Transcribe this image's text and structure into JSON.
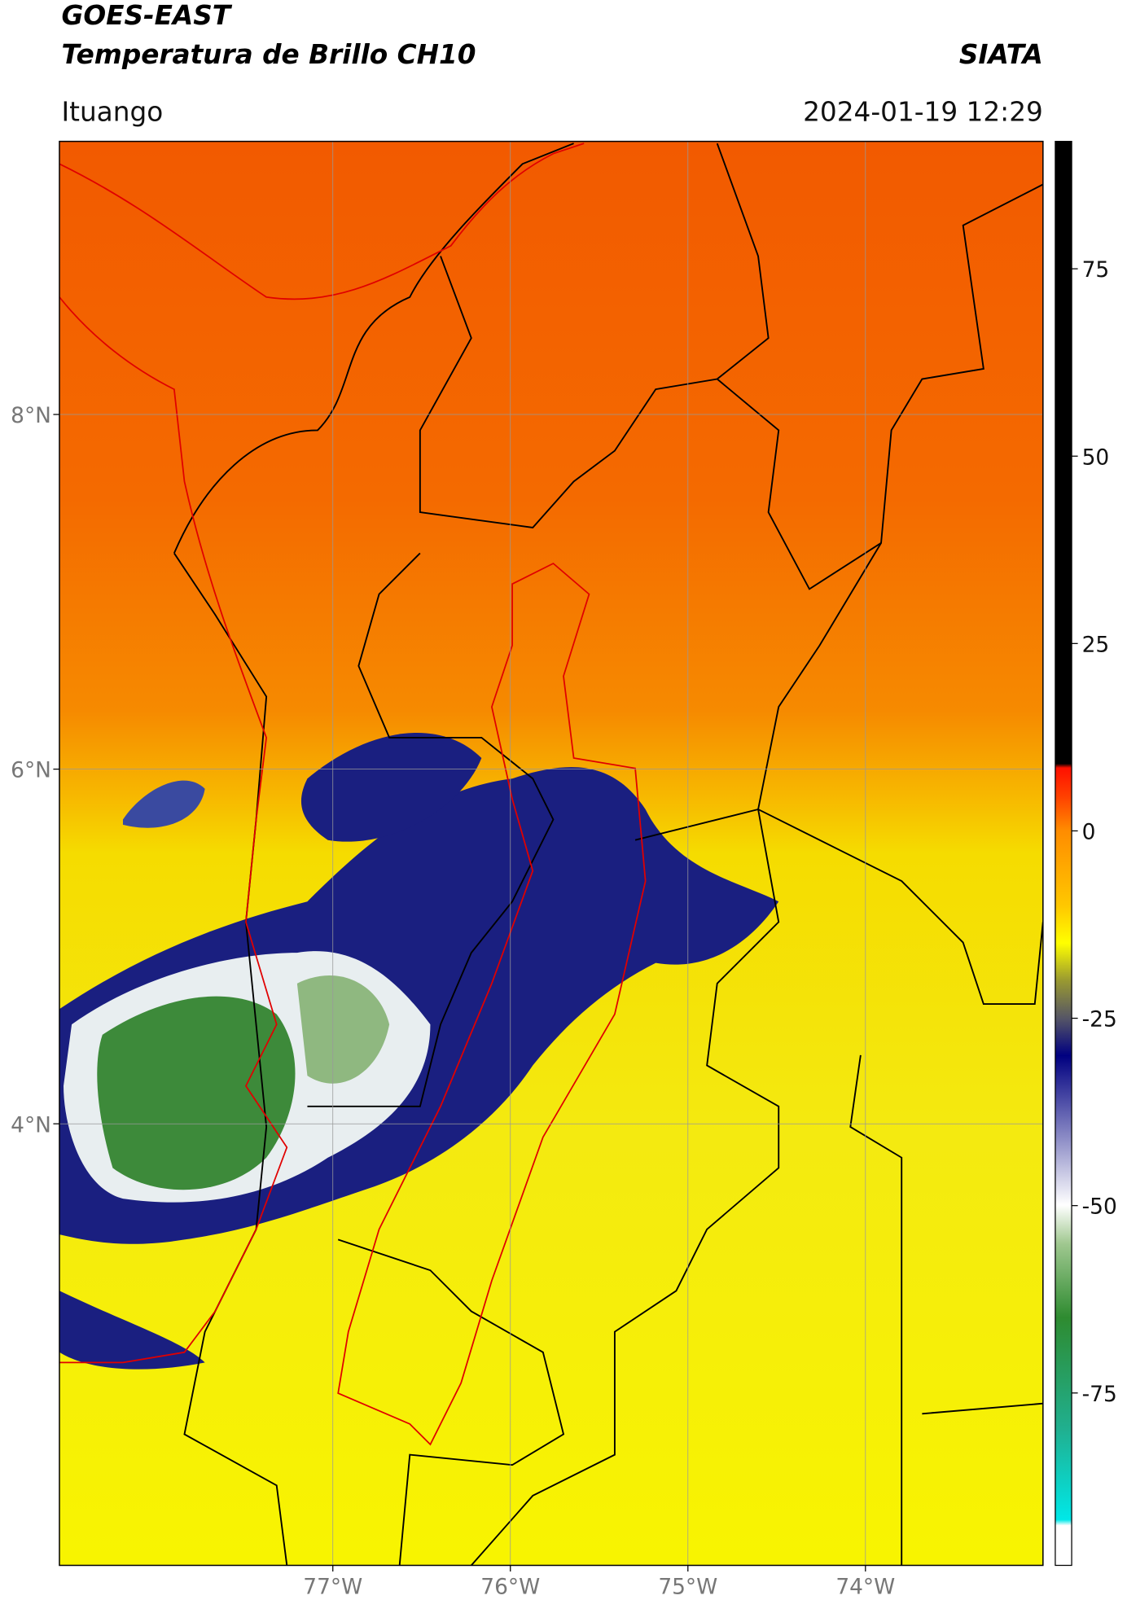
{
  "header": {
    "title_line1": "GOES-EAST",
    "title_line2": "Temperatura de Brillo CH10",
    "brand": "SIATA",
    "location": "Ituango",
    "datetime": "2024-01-19 12:29"
  },
  "map": {
    "xlim": [
      -78.54,
      -73.0
    ],
    "ylim": [
      1.51,
      9.54
    ],
    "xticks": [
      {
        "value": -77,
        "label": "77°W"
      },
      {
        "value": -76,
        "label": "76°W"
      },
      {
        "value": -75,
        "label": "75°W"
      },
      {
        "value": -74,
        "label": "74°W"
      }
    ],
    "yticks": [
      {
        "value": 8,
        "label": "8°N"
      },
      {
        "value": 6,
        "label": "6°N"
      },
      {
        "value": 4,
        "label": "4°N"
      }
    ],
    "grid": true
  },
  "colorbar": {
    "lim": [
      -98,
      92
    ],
    "ticks": [
      -75,
      -50,
      -25,
      0,
      25,
      50,
      75
    ]
  }
}
